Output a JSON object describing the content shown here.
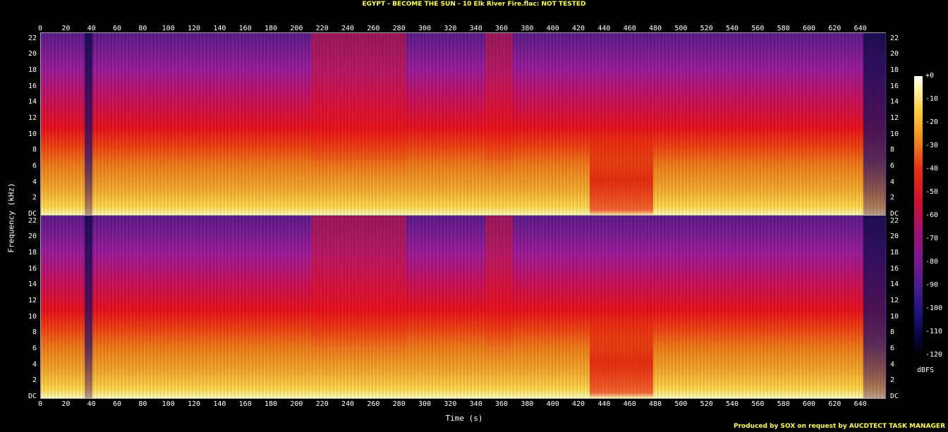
{
  "title": "EGYPT - BECOME THE SUN - 10 Elk River Fire.flac: NOT TESTED",
  "footer": "Produced by SOX on request by AUCDTECT TASK MANAGER",
  "chart_data": {
    "type": "heatmap",
    "xlabel": "Time (s)",
    "ylabel": "Frequency (kHz)",
    "colorbar_label": "dBFS",
    "x_ticks": [
      "0",
      "20",
      "40",
      "60",
      "80",
      "100",
      "120",
      "140",
      "160",
      "180",
      "200",
      "220",
      "240",
      "260",
      "280",
      "300",
      "320",
      "340",
      "360",
      "380",
      "400",
      "420",
      "440",
      "460",
      "480",
      "500",
      "520",
      "540",
      "560",
      "580",
      "600",
      "620",
      "640"
    ],
    "xlim": [
      0,
      660
    ],
    "y_ticks": [
      "DC",
      "2",
      "4",
      "6",
      "8",
      "10",
      "12",
      "14",
      "16",
      "18",
      "20",
      "22"
    ],
    "ylim": [
      0,
      22.5
    ],
    "colorbar_ticks": [
      "+0",
      "-10",
      "-20",
      "-30",
      "-40",
      "-50",
      "-60",
      "-70",
      "-80",
      "-90",
      "-100",
      "-110",
      "-120"
    ],
    "colorbar_range": [
      -120,
      0
    ],
    "channels": 2,
    "segments": [
      {
        "x0": 0,
        "x1": 34,
        "tone": "mid"
      },
      {
        "x0": 34,
        "x1": 40,
        "tone": "dark"
      },
      {
        "x0": 40,
        "x1": 211,
        "tone": "mid"
      },
      {
        "x0": 211,
        "x1": 285,
        "tone": "hot"
      },
      {
        "x0": 285,
        "x1": 347,
        "tone": "mid"
      },
      {
        "x0": 347,
        "x1": 368,
        "tone": "hot"
      },
      {
        "x0": 368,
        "x1": 428,
        "tone": "mid"
      },
      {
        "x0": 428,
        "x1": 478,
        "tone": "redlow"
      },
      {
        "x0": 478,
        "x1": 642,
        "tone": "mid"
      },
      {
        "x0": 642,
        "x1": 660,
        "tone": "dark"
      }
    ]
  }
}
